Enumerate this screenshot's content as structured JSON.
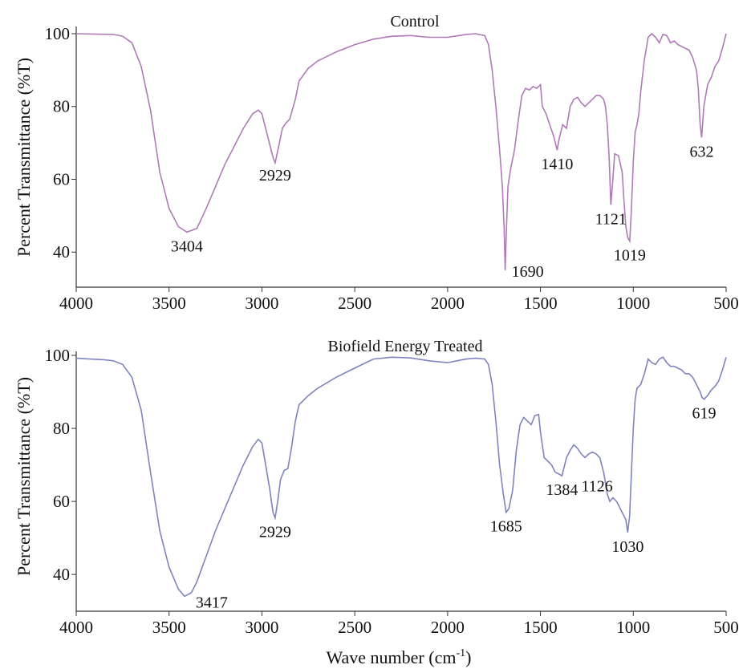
{
  "chart_data": [
    {
      "type": "line",
      "title": "Control",
      "xlabel": "",
      "ylabel": "Percent Transmittance (%T)",
      "xlim": [
        4000,
        500
      ],
      "ylim": [
        33,
        100
      ],
      "x_ticks": [
        4000,
        3500,
        3000,
        2500,
        2000,
        1500,
        1000,
        500
      ],
      "y_ticks": [
        40,
        60,
        80,
        100
      ],
      "grid": false,
      "color": "#b07ab8",
      "series": [
        {
          "x": [
            4000,
            3800,
            3750,
            3700,
            3650,
            3600,
            3550,
            3500,
            3450,
            3404,
            3350,
            3300,
            3250,
            3200,
            3150,
            3100,
            3050,
            3020,
            3000,
            2970,
            2940,
            2929,
            2910,
            2890,
            2870,
            2850,
            2820,
            2800,
            2750,
            2700,
            2600,
            2500,
            2400,
            2300,
            2200,
            2100,
            2000,
            1950,
            1900,
            1850,
            1800,
            1780,
            1760,
            1740,
            1720,
            1705,
            1695,
            1690,
            1685,
            1675,
            1660,
            1640,
            1620,
            1600,
            1580,
            1560,
            1540,
            1520,
            1500,
            1490,
            1470,
            1450,
            1430,
            1410,
            1400,
            1380,
            1360,
            1340,
            1320,
            1300,
            1280,
            1260,
            1240,
            1220,
            1200,
            1180,
            1160,
            1150,
            1140,
            1130,
            1121,
            1110,
            1100,
            1080,
            1060,
            1050,
            1040,
            1030,
            1019,
            1010,
            1000,
            990,
            980,
            970,
            960,
            940,
            920,
            900,
            880,
            860,
            840,
            820,
            800,
            780,
            760,
            740,
            720,
            700,
            680,
            660,
            650,
            640,
            632,
            620,
            600,
            580,
            560,
            540,
            520,
            500
          ],
          "y": [
            100,
            99.8,
            99.3,
            97.5,
            91,
            79,
            62,
            52,
            47,
            45.5,
            46.5,
            52,
            58,
            64,
            69,
            74,
            78,
            79,
            78,
            72,
            66,
            64.5,
            69,
            74,
            75.5,
            76.5,
            82,
            87,
            90.5,
            92.5,
            95,
            97,
            98.5,
            99.3,
            99.5,
            99,
            99,
            99.4,
            99.8,
            100,
            99.5,
            97,
            90,
            80,
            68,
            58,
            46,
            35,
            44,
            58,
            63,
            68,
            76,
            83,
            85,
            84.5,
            85.5,
            85,
            86,
            80,
            78,
            75,
            72,
            68,
            71,
            75,
            74,
            80,
            82,
            82.5,
            81,
            80,
            81,
            82,
            83,
            83,
            82,
            80,
            75,
            66,
            53,
            60,
            67,
            66.5,
            62,
            54,
            47,
            44,
            43,
            52,
            65,
            73,
            75,
            78,
            84,
            93,
            99,
            100,
            99,
            97.5,
            99.8,
            99.5,
            97.5,
            98,
            97,
            96.5,
            96,
            95.5,
            93.5,
            90,
            85,
            75,
            71.5,
            80,
            86,
            88,
            91,
            92.5,
            96,
            100
          ]
        }
      ],
      "annotations": [
        {
          "text": "3404",
          "x": 3404,
          "y": 45.5
        },
        {
          "text": "2929",
          "x": 2929,
          "y": 64.5
        },
        {
          "text": "1690",
          "x": 1690,
          "y": 35
        },
        {
          "text": "1410",
          "x": 1410,
          "y": 68
        },
        {
          "text": "1121",
          "x": 1121,
          "y": 53
        },
        {
          "text": "1019",
          "x": 1019,
          "y": 43
        },
        {
          "text": "632",
          "x": 632,
          "y": 71.5
        }
      ]
    },
    {
      "type": "line",
      "title": "Biofield Energy Treated",
      "xlabel": "Wave number (cm-1)",
      "ylabel": "Percent Transmittance (%T)",
      "xlim": [
        4000,
        500
      ],
      "ylim": [
        33,
        100
      ],
      "x_ticks": [
        4000,
        3500,
        3000,
        2500,
        2000,
        1500,
        1000,
        500
      ],
      "y_ticks": [
        40,
        60,
        80,
        100
      ],
      "grid": false,
      "color": "#7f84be",
      "series": [
        {
          "x": [
            4000,
            3850,
            3800,
            3750,
            3700,
            3650,
            3600,
            3550,
            3500,
            3450,
            3417,
            3380,
            3350,
            3300,
            3250,
            3200,
            3150,
            3100,
            3050,
            3020,
            3000,
            2980,
            2960,
            2940,
            2929,
            2915,
            2900,
            2880,
            2860,
            2840,
            2820,
            2800,
            2750,
            2700,
            2600,
            2500,
            2400,
            2300,
            2200,
            2100,
            2000,
            1950,
            1900,
            1850,
            1800,
            1780,
            1760,
            1740,
            1720,
            1700,
            1685,
            1670,
            1650,
            1630,
            1610,
            1590,
            1570,
            1550,
            1530,
            1510,
            1500,
            1480,
            1460,
            1440,
            1420,
            1400,
            1384,
            1360,
            1340,
            1320,
            1300,
            1280,
            1260,
            1240,
            1220,
            1200,
            1180,
            1160,
            1150,
            1140,
            1126,
            1110,
            1090,
            1070,
            1060,
            1050,
            1040,
            1030,
            1020,
            1010,
            1000,
            990,
            980,
            970,
            960,
            940,
            920,
            900,
            880,
            860,
            840,
            820,
            800,
            780,
            760,
            740,
            720,
            700,
            680,
            660,
            640,
            630,
            619,
            600,
            580,
            560,
            540,
            520,
            500
          ],
          "y": [
            99.2,
            98.8,
            98.5,
            97.5,
            94,
            85,
            68,
            52,
            42,
            36,
            34,
            35,
            38,
            45,
            52,
            58,
            64,
            70,
            75,
            77,
            76,
            70,
            64,
            57,
            55.5,
            60,
            66,
            68.5,
            69,
            75,
            82,
            86.5,
            89,
            91,
            94,
            96.5,
            99,
            99.5,
            99.3,
            98.5,
            98,
            98.5,
            99,
            99.2,
            99,
            97.5,
            92,
            82,
            70,
            62,
            57,
            58,
            63,
            74,
            81,
            83,
            82,
            81,
            83.5,
            83.8,
            79,
            72,
            71,
            70,
            68,
            67.5,
            67,
            72,
            74,
            75.5,
            74.5,
            73,
            72,
            73,
            73.5,
            73,
            72,
            68,
            65,
            62,
            60,
            61,
            60,
            58,
            57,
            56,
            55,
            51.5,
            56,
            68,
            80,
            88,
            91,
            91.5,
            92,
            95,
            99,
            98,
            97.5,
            99,
            99.5,
            98,
            97,
            97,
            96.5,
            96,
            95,
            95,
            94,
            92,
            90,
            88.5,
            88,
            89,
            90.5,
            91.5,
            93,
            96,
            99.5
          ]
        }
      ],
      "annotations": [
        {
          "text": "3417",
          "x": 3417,
          "y": 34
        },
        {
          "text": "2929",
          "x": 2929,
          "y": 55.5
        },
        {
          "text": "1685",
          "x": 1685,
          "y": 57
        },
        {
          "text": "1384",
          "x": 1384,
          "y": 67
        },
        {
          "text": "1126",
          "x": 1126,
          "y": 61
        },
        {
          "text": "1030",
          "x": 1030,
          "y": 51.5
        },
        {
          "text": "619",
          "x": 619,
          "y": 88
        }
      ]
    }
  ],
  "xaxis_title": {
    "main": "Wave number (cm",
    "superscript": "-1",
    "close": ")"
  }
}
